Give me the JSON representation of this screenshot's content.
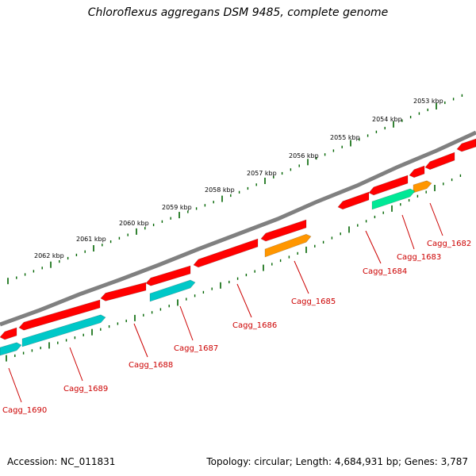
{
  "title": "Chloroflexus aggregans DSM 9485, complete genome",
  "footer": {
    "accession": "Accession: NC_011831",
    "summary": "Topology: circular; Length: 4,684,931 bp; Genes: 3,787"
  },
  "colors": {
    "backbone": "#808080",
    "gene_red": "#ff0000",
    "gene_cyan": "#00c8c8",
    "gene_green": "#00e896",
    "gene_orange": "#ff9600",
    "ticks": "#006400",
    "gene_label": "#cc0000",
    "tick_label": "#000000"
  },
  "scale_labels": [
    {
      "text": "2053 kbp",
      "kbp": 2053
    },
    {
      "text": "2054 kbp",
      "kbp": 2054
    },
    {
      "text": "2055 kbp",
      "kbp": 2055
    },
    {
      "text": "2056 kbp",
      "kbp": 2056
    },
    {
      "text": "2057 kbp",
      "kbp": 2057
    },
    {
      "text": "2058 kbp",
      "kbp": 2058
    },
    {
      "text": "2059 kbp",
      "kbp": 2059
    },
    {
      "text": "2060 kbp",
      "kbp": 2060
    },
    {
      "text": "2061 kbp",
      "kbp": 2061
    },
    {
      "text": "2062 kbp",
      "kbp": 2062
    }
  ],
  "gene_labels": [
    {
      "text": "Cagg_1682"
    },
    {
      "text": "Cagg_1683"
    },
    {
      "text": "Cagg_1684"
    },
    {
      "text": "Cagg_1685"
    },
    {
      "text": "Cagg_1686"
    },
    {
      "text": "Cagg_1687"
    },
    {
      "text": "Cagg_1688"
    },
    {
      "text": "Cagg_1689"
    },
    {
      "text": "Cagg_1690"
    }
  ]
}
